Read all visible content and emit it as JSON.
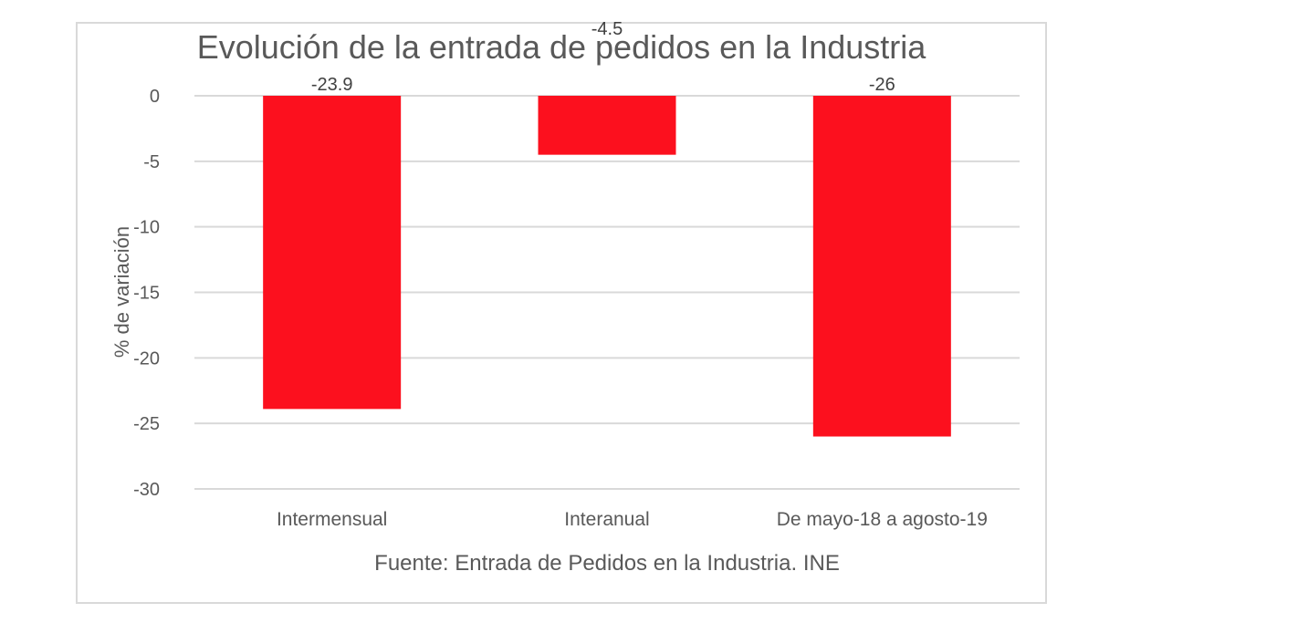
{
  "chart_data": {
    "type": "bar",
    "title": "Evolución de la entrada de pedidos en la Industria",
    "categories": [
      "Intermensual",
      "Interanual",
      "De mayo-18 a agosto-19"
    ],
    "values": [
      -23.9,
      -4.5,
      -26
    ],
    "data_labels": [
      "-23.9",
      "-4.5",
      "-26"
    ],
    "xlabel": "Fuente: Entrada de Pedidos en la Industria. INE",
    "ylabel": "% de variación",
    "ylim": [
      -30,
      0
    ],
    "yticks": [
      0,
      -5,
      -10,
      -15,
      -20,
      -25,
      -30
    ],
    "grid": true,
    "bar_color": "#fc101e"
  }
}
